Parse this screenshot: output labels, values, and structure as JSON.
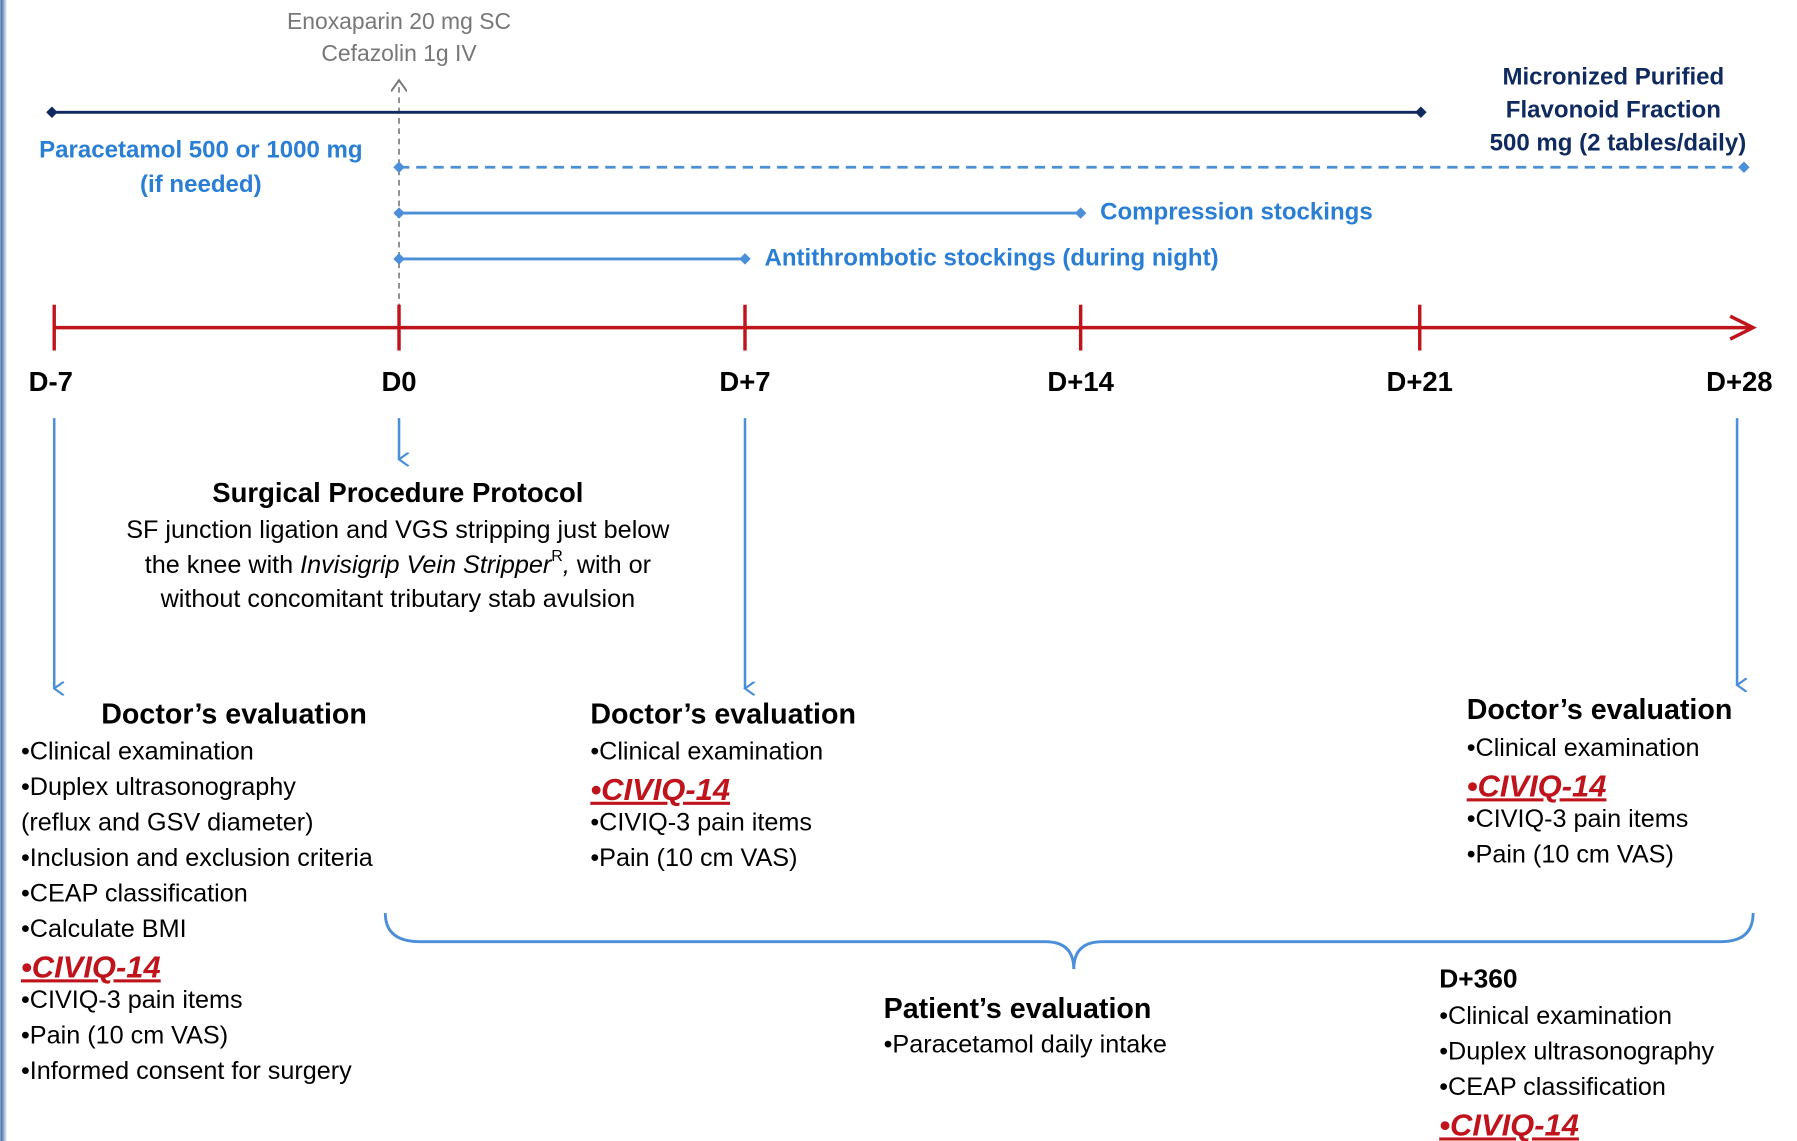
{
  "top_note": [
    "Enoxaparin 20 mg SC",
    "Cefazolin 1g IV"
  ],
  "mpff": [
    "Micronized Purified",
    "Flavonoid Fraction",
    "500 mg (2 tables/daily)"
  ],
  "paracetamol": [
    "Paracetamol 500 or 1000 mg",
    "(if needed)"
  ],
  "compression": "Compression stockings",
  "antithrombotic": "Antithrombotic stockings (during night)",
  "timeline": [
    "D-7",
    "D0",
    "D+7",
    "D+14",
    "D+21",
    "D+28"
  ],
  "surgical": {
    "title": "Surgical Procedure Protocol",
    "line1": "SF junction ligation and VGS stripping just below",
    "line2": [
      "the knee with ",
      "Invisigrip Vein Stripper",
      "R",
      ",",
      " with or"
    ],
    "line3": "without concomitant tributary stab avulsion"
  },
  "evaluations": [
    {
      "title": "Doctor’s evaluation",
      "items": [
        {
          "text": "•Clinical examination"
        },
        {
          "text": "•Duplex ultrasonography"
        },
        {
          "text": "(reflux and GSV diameter)"
        },
        {
          "text": "•Inclusion and exclusion criteria"
        },
        {
          "text": "•CEAP classification"
        },
        {
          "text": "•Calculate BMI"
        },
        {
          "text": "•CIVIQ-14",
          "emphasis": true
        },
        {
          "text": "•CIVIQ-3 pain items"
        },
        {
          "text": "•Pain (10 cm VAS)"
        },
        {
          "text": "•Informed consent for surgery"
        }
      ]
    },
    {
      "title": "Doctor’s evaluation",
      "items": [
        {
          "text": "•Clinical examination"
        },
        {
          "text": "•CIVIQ-14",
          "emphasis": true
        },
        {
          "text": "•CIVIQ-3 pain items"
        },
        {
          "text": "•Pain (10 cm VAS)"
        }
      ]
    },
    {
      "title": "Doctor’s evaluation",
      "items": [
        {
          "text": "•Clinical examination"
        },
        {
          "text": "•CIVIQ-14",
          "emphasis": true
        },
        {
          "text": "•CIVIQ-3 pain items"
        },
        {
          "text": "•Pain (10 cm VAS)"
        }
      ]
    },
    {
      "title": "Patient’s evaluation",
      "items": [
        {
          "text": "•Paracetamol daily intake"
        }
      ]
    },
    {
      "title": "D+360",
      "items": [
        {
          "text": "•Clinical examination"
        },
        {
          "text": "•Duplex ultrasonography"
        },
        {
          "text": "•CEAP classification"
        },
        {
          "text": "•CIVIQ-14",
          "emphasis": true
        }
      ]
    }
  ]
}
